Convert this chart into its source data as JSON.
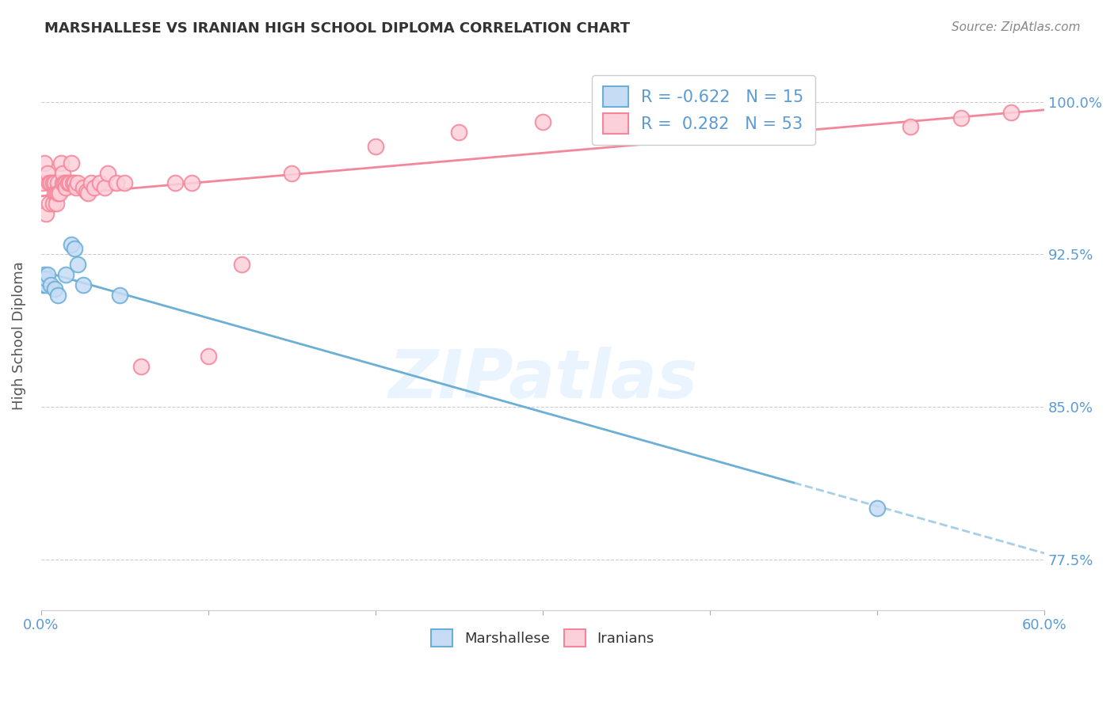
{
  "title": "MARSHALLESE VS IRANIAN HIGH SCHOOL DIPLOMA CORRELATION CHART",
  "source": "Source: ZipAtlas.com",
  "ylabel_label": "High School Diploma",
  "legend_entries": [
    {
      "label": "Marshallese",
      "color": "#aec6f0"
    },
    {
      "label": "Iranians",
      "color": "#f4b8c8"
    }
  ],
  "legend_r_n": [
    {
      "R": "-0.622",
      "N": "15"
    },
    {
      "R": "0.282",
      "N": "53"
    }
  ],
  "marshallese_x": [
    0.001,
    0.002,
    0.003,
    0.003,
    0.004,
    0.006,
    0.008,
    0.01,
    0.015,
    0.018,
    0.02,
    0.022,
    0.025,
    0.047,
    0.5
  ],
  "marshallese_y": [
    0.91,
    0.915,
    0.91,
    0.913,
    0.915,
    0.91,
    0.908,
    0.905,
    0.915,
    0.93,
    0.928,
    0.92,
    0.91,
    0.905,
    0.8
  ],
  "iranians_x": [
    0.001,
    0.002,
    0.003,
    0.004,
    0.005,
    0.005,
    0.006,
    0.007,
    0.007,
    0.008,
    0.008,
    0.009,
    0.009,
    0.01,
    0.01,
    0.011,
    0.012,
    0.013,
    0.013,
    0.014,
    0.015,
    0.015,
    0.016,
    0.017,
    0.018,
    0.019,
    0.02,
    0.021,
    0.022,
    0.025,
    0.027,
    0.028,
    0.03,
    0.032,
    0.035,
    0.038,
    0.04,
    0.045,
    0.05,
    0.06,
    0.08,
    0.09,
    0.1,
    0.12,
    0.15,
    0.2,
    0.25,
    0.3,
    0.4,
    0.45,
    0.52,
    0.55,
    0.58
  ],
  "iranians_y": [
    0.96,
    0.97,
    0.945,
    0.965,
    0.96,
    0.95,
    0.96,
    0.96,
    0.95,
    0.96,
    0.955,
    0.955,
    0.95,
    0.96,
    0.955,
    0.955,
    0.97,
    0.96,
    0.965,
    0.96,
    0.96,
    0.958,
    0.96,
    0.96,
    0.97,
    0.96,
    0.96,
    0.958,
    0.96,
    0.958,
    0.956,
    0.955,
    0.96,
    0.958,
    0.96,
    0.958,
    0.965,
    0.96,
    0.96,
    0.87,
    0.96,
    0.96,
    0.875,
    0.92,
    0.965,
    0.978,
    0.985,
    0.99,
    0.99,
    0.995,
    0.988,
    0.992,
    0.995
  ],
  "marshallese_line_color": "#6baed6",
  "iranians_line_color": "#f4869a",
  "watermark_text": "ZIPatlas",
  "xlim": [
    0.0,
    0.6
  ],
  "ylim": [
    0.75,
    1.02
  ],
  "yticks": [
    0.775,
    0.85,
    0.925,
    1.0
  ],
  "ytick_labels": [
    "77.5%",
    "85.0%",
    "92.5%",
    "100.0%"
  ],
  "xtick_labels_show": [
    "0.0%",
    "60.0%"
  ],
  "xtick_positions_show": [
    0.0,
    0.6
  ],
  "xtick_minor_positions": [
    0.1,
    0.2,
    0.3,
    0.4,
    0.5
  ]
}
